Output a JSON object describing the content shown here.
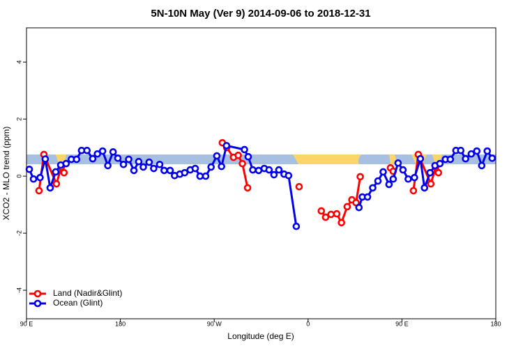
{
  "chart_data": {
    "type": "line",
    "title": "5N-10N May (Ver 9)   2014-09-06 to 2018-12-31",
    "x_label": "Longitude (deg E)",
    "y_label": "XCO2 - MLO trend (ppm)",
    "xlim": [
      90,
      540
    ],
    "ylim": [
      -5,
      5.2
    ],
    "xticks": [
      {
        "value": 90,
        "label": "90 E"
      },
      {
        "value": 180,
        "label": "180"
      },
      {
        "value": 270,
        "label": "90 W"
      },
      {
        "value": 360,
        "label": "0"
      },
      {
        "value": 450,
        "label": "90 E"
      },
      {
        "value": 540,
        "label": "180"
      }
    ],
    "yticks": [
      -4,
      -2,
      0,
      2,
      4
    ],
    "legend": "bottom-left",
    "series": [
      {
        "name": "Land (Nadir&Glint)",
        "color": "#ff0000",
        "x": [
          102,
          106.7,
          118.7,
          123.4,
          126,
          null,
          277.8,
          282,
          288.5,
          293,
          297,
          302,
          null,
          351.4,
          null,
          372.7,
          376.8,
          382,
          387.5,
          392,
          397.5,
          402,
          406,
          410,
          null,
          439,
          441.6,
          null,
          461,
          465.7,
          477.7,
          482.4,
          485
        ],
        "values": [
          -0.51,
          0.76,
          -0.27,
          0.32,
          0.12,
          null,
          1.17,
          1.0,
          0.66,
          0.73,
          0.44,
          -0.41,
          null,
          -0.37,
          null,
          -1.22,
          -1.44,
          -1.34,
          -1.32,
          -1.63,
          -1.07,
          -0.83,
          -0.93,
          -0.02,
          null,
          0.29,
          0.17,
          null,
          -0.51,
          0.76,
          -0.27,
          0.32,
          0.12
        ]
      },
      {
        "name": "Ocean (Glint)",
        "color": "#0000ee",
        "x": [
          92.7,
          96.7,
          103,
          108,
          112.7,
          118,
          122.8,
          128,
          133,
          138,
          142.8,
          148,
          153.5,
          158,
          163,
          168,
          173,
          177.6,
          183,
          188,
          193,
          197.6,
          202,
          207.6,
          212,
          217.7,
          222,
          227.7,
          232,
          237,
          241.7,
          247,
          251.8,
          256.4,
          261.8,
          267,
          272.5,
          277,
          281.8,
          299,
          302.6,
          307,
          312.6,
          318,
          322.6,
          327.3,
          332,
          337,
          341.3,
          348.7,
          null,
          408.8,
          412,
          417,
          422,
          427,
          432,
          437.6,
          441.6,
          446.3,
          451,
          456,
          462,
          467.7,
          471.6,
          477,
          481.7,
          486.4,
          491.7,
          496.4,
          501.8,
          506.4,
          511,
          516.5,
          521.8,
          526.5,
          531.8,
          536.5
        ],
        "values": [
          0.24,
          -0.1,
          -0.05,
          0.6,
          -0.41,
          0.15,
          0.39,
          0.44,
          0.59,
          0.59,
          0.9,
          0.9,
          0.61,
          0.78,
          0.88,
          0.37,
          0.85,
          0.63,
          0.41,
          0.59,
          0.2,
          0.51,
          0.32,
          0.49,
          0.27,
          0.41,
          0.2,
          0.2,
          0.02,
          0.07,
          0.12,
          0.22,
          0.27,
          0,
          0,
          0.32,
          0.71,
          0.34,
          1.07,
          0.93,
          0.68,
          0.22,
          0.2,
          0.27,
          0.22,
          0.05,
          0.22,
          0.07,
          0.02,
          -1.76,
          null,
          -1.1,
          -0.73,
          -0.73,
          -0.41,
          -0.17,
          0.15,
          -0.29,
          -0.1,
          0.46,
          0.22,
          -0.1,
          -0.05,
          0.61,
          -0.41,
          0.12,
          0.37,
          0.44,
          0.59,
          0.59,
          0.9,
          0.9,
          0.61,
          0.78,
          0.88,
          0.37,
          0.88,
          0.63
        ]
      }
    ]
  }
}
